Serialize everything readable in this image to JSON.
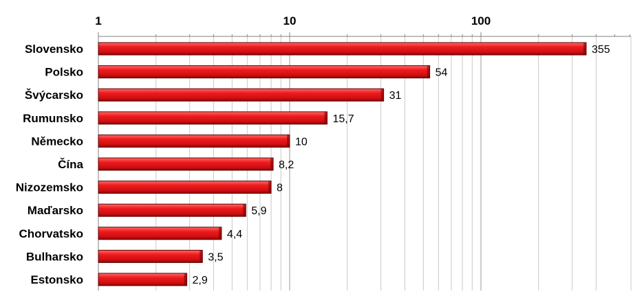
{
  "chart_data": {
    "type": "bar",
    "orientation": "horizontal",
    "x_scale": "log",
    "xlim": [
      1,
      400
    ],
    "x_ticks": [
      "1",
      "10",
      "100"
    ],
    "x_axis_position": "top",
    "grid": true,
    "bar_color": "#e8191c",
    "categories": [
      "Slovensko",
      "Polsko",
      "Švýcarsko",
      "Rumunsko",
      "Německo",
      "Čína",
      "Nizozemsko",
      "Maďarsko",
      "Chorvatsko",
      "Bulharsko",
      "Estonsko"
    ],
    "values": [
      355,
      54,
      31,
      15.7,
      10,
      8.2,
      8,
      5.9,
      4.4,
      3.5,
      2.9
    ],
    "value_labels": [
      "355",
      "54",
      "31",
      "15,7",
      "10",
      "8,2",
      "8",
      "5,9",
      "4,4",
      "3,5",
      "2,9"
    ]
  }
}
